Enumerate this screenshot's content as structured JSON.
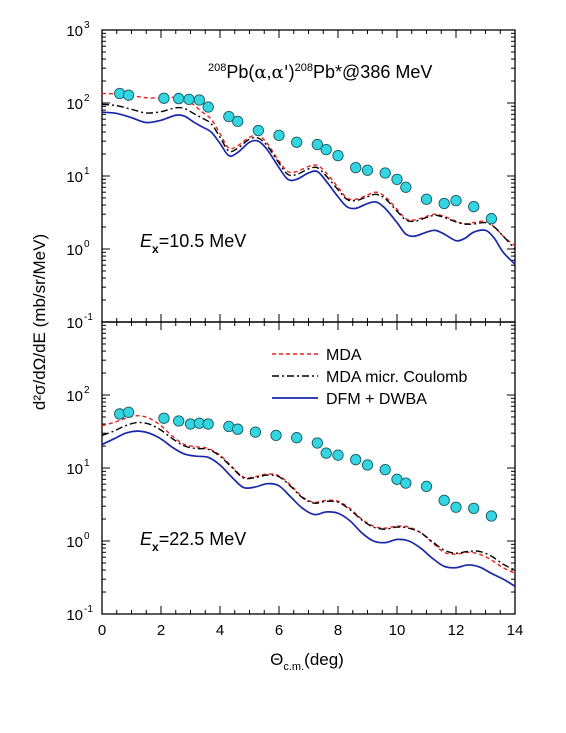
{
  "figure": {
    "ylabel": "d²σ/dΩ/dE (mb/sr/MeV)",
    "xlabel_main": "Θ",
    "xlabel_sub": "c.m.",
    "xlabel_unit": "(deg)"
  },
  "chart_data": [
    {
      "type": "line",
      "panel": "top",
      "yscale": "log",
      "xlim": [
        0,
        14
      ],
      "ylim": [
        0.1,
        1000
      ],
      "title": "208Pb(α,α')208Pb*@386 MeV",
      "title_parts": {
        "mass1": "208",
        "part1": "Pb(",
        "alpha": "α",
        "sep": ",",
        "alpha2": "α'",
        "part2": ")",
        "mass2": "208",
        "part3": "Pb*@386 MeV"
      },
      "annotation": {
        "E": "E",
        "sub": "x",
        "value": "=10.5 MeV"
      },
      "x_ticks": [],
      "y_ticks": [
        {
          "value": 0.1,
          "base": "10",
          "exp": "-1"
        },
        {
          "value": 1,
          "base": "10",
          "exp": "0"
        },
        {
          "value": 10,
          "base": "10",
          "exp": "1"
        },
        {
          "value": 100,
          "base": "10",
          "exp": "2"
        },
        {
          "value": 1000,
          "base": "10",
          "exp": "3"
        }
      ],
      "series": [
        {
          "name": "MDA",
          "color": "#e8211b",
          "style": "dashed",
          "x": [
            0,
            0.5,
            1,
            1.5,
            2,
            2.5,
            2.8,
            3.1,
            3.4,
            3.7,
            4,
            4.3,
            4.6,
            5,
            5.3,
            5.6,
            6,
            6.3,
            6.6,
            7,
            7.3,
            7.6,
            8,
            8.3,
            8.6,
            9,
            9.3,
            9.6,
            10,
            10.3,
            10.6,
            11,
            11.3,
            11.6,
            12,
            12.3,
            12.6,
            13,
            13.3,
            13.6,
            14
          ],
          "y": [
            135,
            133,
            126,
            118,
            117,
            120,
            117,
            95,
            75,
            60,
            38,
            24,
            26,
            34,
            36,
            28,
            16,
            11.5,
            11.5,
            13.5,
            14,
            11,
            7,
            5,
            4.8,
            5.5,
            6,
            5.2,
            3.5,
            2.6,
            2.5,
            2.8,
            3,
            2.8,
            2.4,
            2.2,
            2.3,
            2.4,
            2,
            1.5,
            1.1
          ]
        },
        {
          "name": "MDA micr. Coulomb",
          "color": "#000000",
          "style": "dashdot",
          "x": [
            0,
            0.5,
            1,
            1.5,
            2,
            2.5,
            2.8,
            3.1,
            3.4,
            3.7,
            4,
            4.3,
            4.6,
            5,
            5.3,
            5.6,
            6,
            6.3,
            6.6,
            7,
            7.3,
            7.6,
            8,
            8.3,
            8.6,
            9,
            9.3,
            9.6,
            10,
            10.3,
            10.6,
            11,
            11.3,
            11.6,
            12,
            12.3,
            12.6,
            13,
            13.3,
            13.6,
            14
          ],
          "y": [
            96,
            92,
            82,
            73,
            76,
            86,
            84,
            72,
            62,
            52,
            34,
            22,
            24,
            32,
            33,
            26,
            15,
            10.5,
            10.5,
            12.5,
            13,
            10,
            6.5,
            4.8,
            4.6,
            5.2,
            5.6,
            4.9,
            3.3,
            2.5,
            2.4,
            2.7,
            2.9,
            2.7,
            2.35,
            2.2,
            2.2,
            2.3,
            2,
            1.5,
            1
          ]
        },
        {
          "name": "DFM + DWBA",
          "color": "#1a27a8",
          "style": "solid",
          "x": [
            0,
            0.5,
            1,
            1.5,
            2,
            2.5,
            2.8,
            3.1,
            3.4,
            3.7,
            4,
            4.3,
            4.6,
            5,
            5.3,
            5.6,
            6,
            6.3,
            6.6,
            7,
            7.3,
            7.6,
            8,
            8.3,
            8.6,
            9,
            9.3,
            9.6,
            10,
            10.3,
            10.6,
            11,
            11.3,
            11.6,
            12,
            12.3,
            12.6,
            13,
            13.3,
            13.6,
            14
          ],
          "y": [
            75,
            72,
            63,
            54,
            58,
            68,
            66,
            55,
            47,
            40,
            28,
            19,
            21,
            29,
            30,
            23,
            13,
            9,
            9,
            11,
            11.5,
            8.5,
            5.2,
            3.8,
            3.6,
            4.2,
            4.4,
            3.6,
            2.3,
            1.6,
            1.5,
            1.7,
            1.8,
            1.6,
            1.3,
            1.4,
            1.7,
            1.8,
            1.4,
            0.9,
            0.62
          ]
        },
        {
          "name": "data",
          "color": "#33d6e0",
          "style": "points",
          "x": [
            0.6,
            0.9,
            2.1,
            2.6,
            2.95,
            3.3,
            3.6,
            4.3,
            4.6,
            5.3,
            6.0,
            6.6,
            7.3,
            7.6,
            8.0,
            8.6,
            9.0,
            9.6,
            10.0,
            10.3,
            11.0,
            11.6,
            12.0,
            12.6,
            13.2
          ],
          "y": [
            135,
            128,
            116,
            115,
            112,
            110,
            88,
            65,
            56,
            42,
            36,
            29,
            27,
            23,
            19,
            13,
            12,
            11,
            9,
            7,
            4.8,
            4.2,
            4.6,
            3.8,
            2.6
          ]
        }
      ]
    },
    {
      "type": "line",
      "panel": "bottom",
      "yscale": "log",
      "xlim": [
        0,
        14
      ],
      "ylim": [
        0.1,
        1000
      ],
      "annotation": {
        "E": "E",
        "sub": "x",
        "value": "=22.5 MeV"
      },
      "x_ticks": [
        "0",
        "2",
        "4",
        "6",
        "8",
        "10",
        "12",
        "14"
      ],
      "y_ticks": [
        {
          "value": 0.1,
          "base": "10",
          "exp": "-1"
        },
        {
          "value": 1,
          "base": "10",
          "exp": "0"
        },
        {
          "value": 10,
          "base": "10",
          "exp": "1"
        },
        {
          "value": 100,
          "base": "10",
          "exp": "2"
        }
      ],
      "legend": [
        "MDA",
        "MDA micr. Coulomb",
        "DFM + DWBA"
      ],
      "series": [
        {
          "name": "MDA",
          "color": "#e8211b",
          "style": "dashed",
          "x": [
            0,
            0.4,
            0.8,
            1.2,
            1.6,
            2,
            2.4,
            2.8,
            3.2,
            3.6,
            4,
            4.4,
            4.8,
            5.2,
            5.6,
            6,
            6.4,
            6.8,
            7.2,
            7.6,
            8,
            8.4,
            8.8,
            9.2,
            9.6,
            10,
            10.4,
            10.8,
            11.2,
            11.6,
            12,
            12.4,
            12.8,
            13.2,
            13.6,
            14
          ],
          "y": [
            38,
            42,
            48,
            52,
            48,
            38,
            27,
            21,
            19.5,
            18.5,
            15,
            10.5,
            7.5,
            7.6,
            8.3,
            7.8,
            5.8,
            4,
            3.4,
            3.6,
            3.5,
            2.8,
            2,
            1.6,
            1.5,
            1.6,
            1.55,
            1.3,
            0.95,
            0.7,
            0.66,
            0.7,
            0.66,
            0.55,
            0.43,
            0.36
          ]
        },
        {
          "name": "MDA micr. Coulomb",
          "color": "#000000",
          "style": "dashdot",
          "x": [
            0,
            0.4,
            0.8,
            1.2,
            1.6,
            2,
            2.4,
            2.8,
            3.2,
            3.6,
            4,
            4.4,
            4.8,
            5.2,
            5.6,
            6,
            6.4,
            6.8,
            7.2,
            7.6,
            8,
            8.4,
            8.8,
            9.2,
            9.6,
            10,
            10.4,
            10.8,
            11.2,
            11.6,
            12,
            12.4,
            12.8,
            13.2,
            13.6,
            14
          ],
          "y": [
            28,
            32,
            38,
            42,
            40,
            33,
            25,
            20,
            18.5,
            18,
            14.5,
            10.2,
            7.3,
            7.4,
            8,
            7.6,
            5.6,
            3.9,
            3.3,
            3.5,
            3.4,
            2.7,
            1.95,
            1.55,
            1.45,
            1.55,
            1.5,
            1.3,
            0.98,
            0.75,
            0.68,
            0.72,
            0.72,
            0.62,
            0.48,
            0.4
          ]
        },
        {
          "name": "DFM + DWBA",
          "color": "#1a27a8",
          "style": "solid",
          "x": [
            0,
            0.4,
            0.8,
            1.2,
            1.6,
            2,
            2.4,
            2.8,
            3.2,
            3.6,
            4,
            4.4,
            4.8,
            5.2,
            5.6,
            6,
            6.4,
            6.8,
            7.2,
            7.6,
            8,
            8.4,
            8.8,
            9.2,
            9.6,
            10,
            10.4,
            10.8,
            11.2,
            11.6,
            12,
            12.4,
            12.8,
            13.2,
            13.6,
            14
          ],
          "y": [
            21,
            25,
            30,
            32,
            30,
            25,
            19,
            15.5,
            14.5,
            14,
            11,
            7.5,
            5.4,
            5.5,
            6.1,
            5.7,
            4,
            2.8,
            2.3,
            2.5,
            2.4,
            1.9,
            1.3,
            1,
            0.95,
            1.05,
            1,
            0.8,
            0.58,
            0.45,
            0.43,
            0.47,
            0.44,
            0.36,
            0.3,
            0.24
          ]
        },
        {
          "name": "data",
          "color": "#33d6e0",
          "style": "points",
          "x": [
            0.6,
            0.9,
            2.1,
            2.6,
            3.0,
            3.3,
            3.6,
            4.3,
            4.6,
            5.2,
            5.9,
            6.6,
            7.3,
            7.6,
            8.0,
            8.6,
            9.0,
            9.6,
            10.0,
            10.3,
            11.0,
            11.6,
            12.0,
            12.6,
            13.2
          ],
          "y": [
            55,
            58,
            48,
            44,
            40,
            41,
            40,
            37,
            34,
            31,
            28,
            26,
            22,
            16,
            15,
            13,
            11,
            9.5,
            7,
            6.2,
            5.6,
            3.6,
            2.9,
            2.8,
            2.2
          ]
        }
      ]
    }
  ]
}
